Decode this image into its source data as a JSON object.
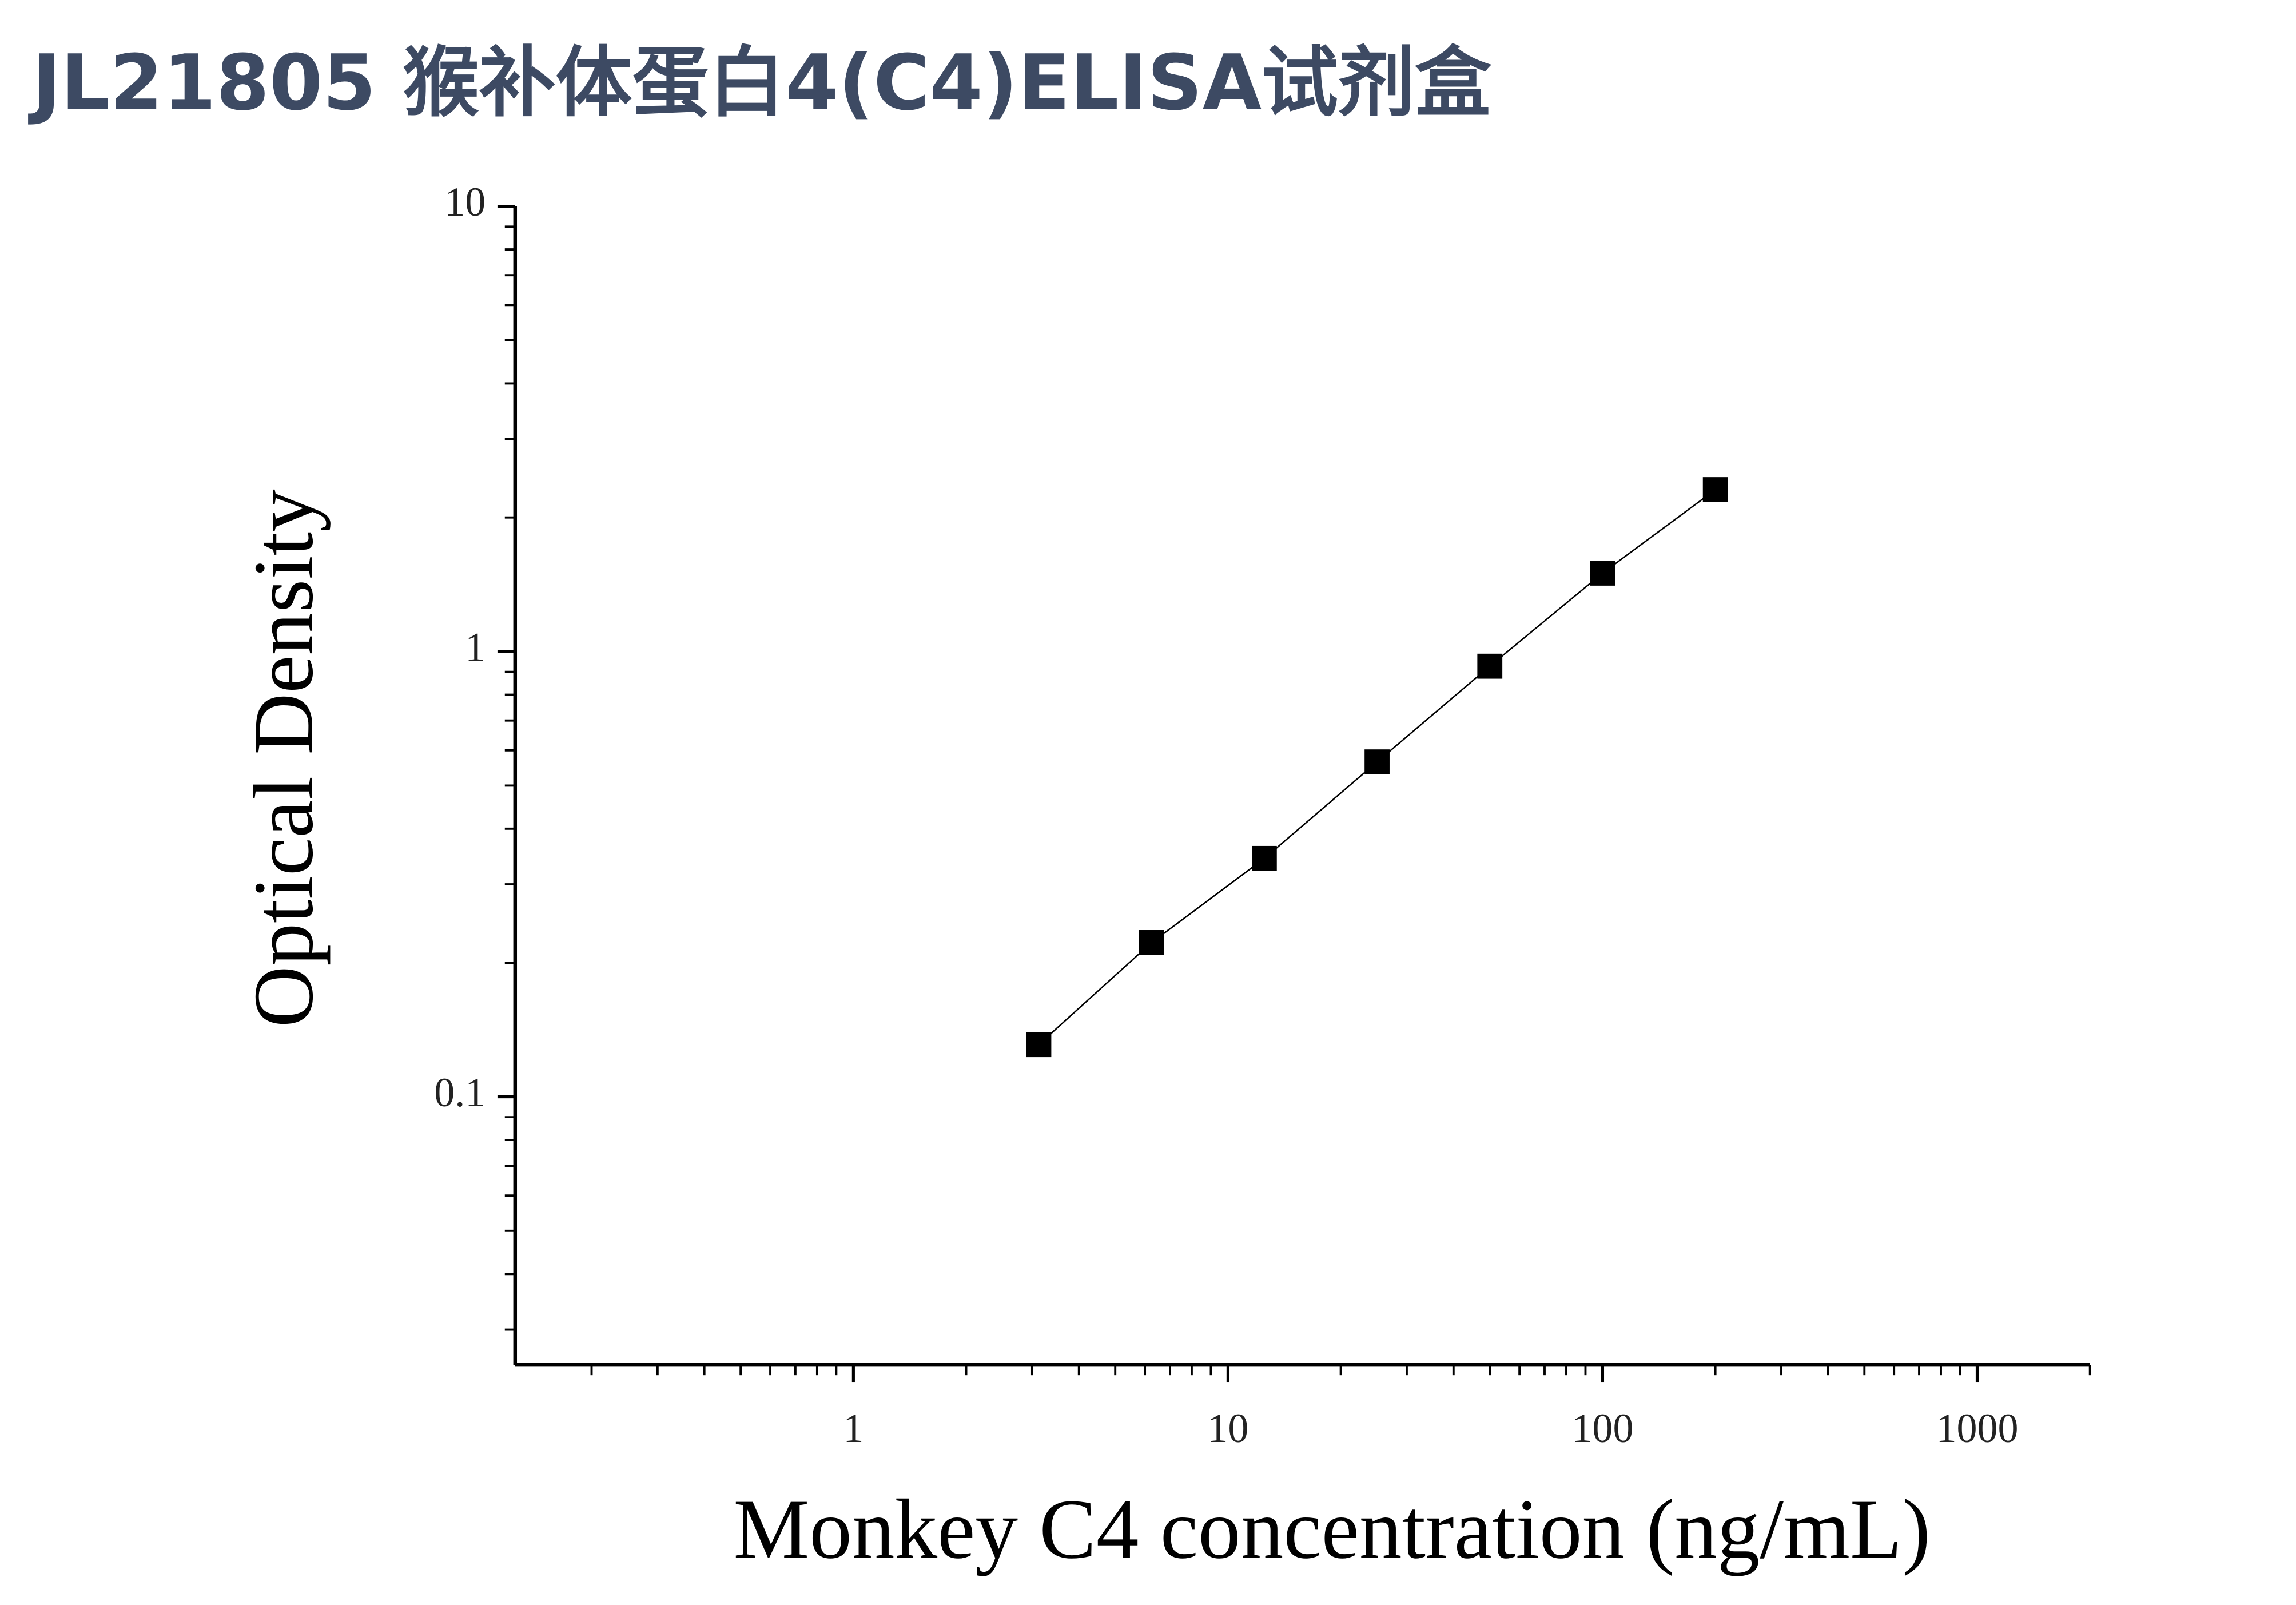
{
  "chart_data": {
    "type": "scatter",
    "title": "JL21805 猴补体蛋白4(C4)ELISA试剂盒",
    "x_label": "Monkey C4 concentration (ng/mL)",
    "y_label": "Optical Density",
    "x": [
      3.125,
      6.25,
      12.5,
      25,
      50,
      100,
      200
    ],
    "values": [
      0.131,
      0.222,
      0.343,
      0.565,
      0.927,
      1.5,
      2.31
    ],
    "color": "#000000",
    "xscale": "log",
    "yscale": "log",
    "xlim": [
      0.125,
      2000
    ],
    "ylim": [
      0.025,
      10
    ],
    "xticks": [
      1,
      10,
      100,
      1000
    ],
    "yticks": [
      0.1,
      1,
      10
    ],
    "xminorticks": [
      0.2,
      0.3,
      0.4,
      0.5,
      0.6,
      0.7,
      0.8,
      0.9,
      2,
      3,
      4,
      5,
      6,
      7,
      8,
      9,
      20,
      30,
      40,
      50,
      60,
      70,
      80,
      90,
      200,
      300,
      400,
      500,
      600,
      700,
      800,
      900,
      2000
    ],
    "yminorticks": [
      0.03,
      0.04,
      0.05,
      0.06,
      0.07,
      0.08,
      0.09,
      0.2,
      0.3,
      0.4,
      0.5,
      0.6,
      0.7,
      0.8,
      0.9,
      2,
      3,
      4,
      5,
      6,
      7,
      8,
      9
    ]
  }
}
